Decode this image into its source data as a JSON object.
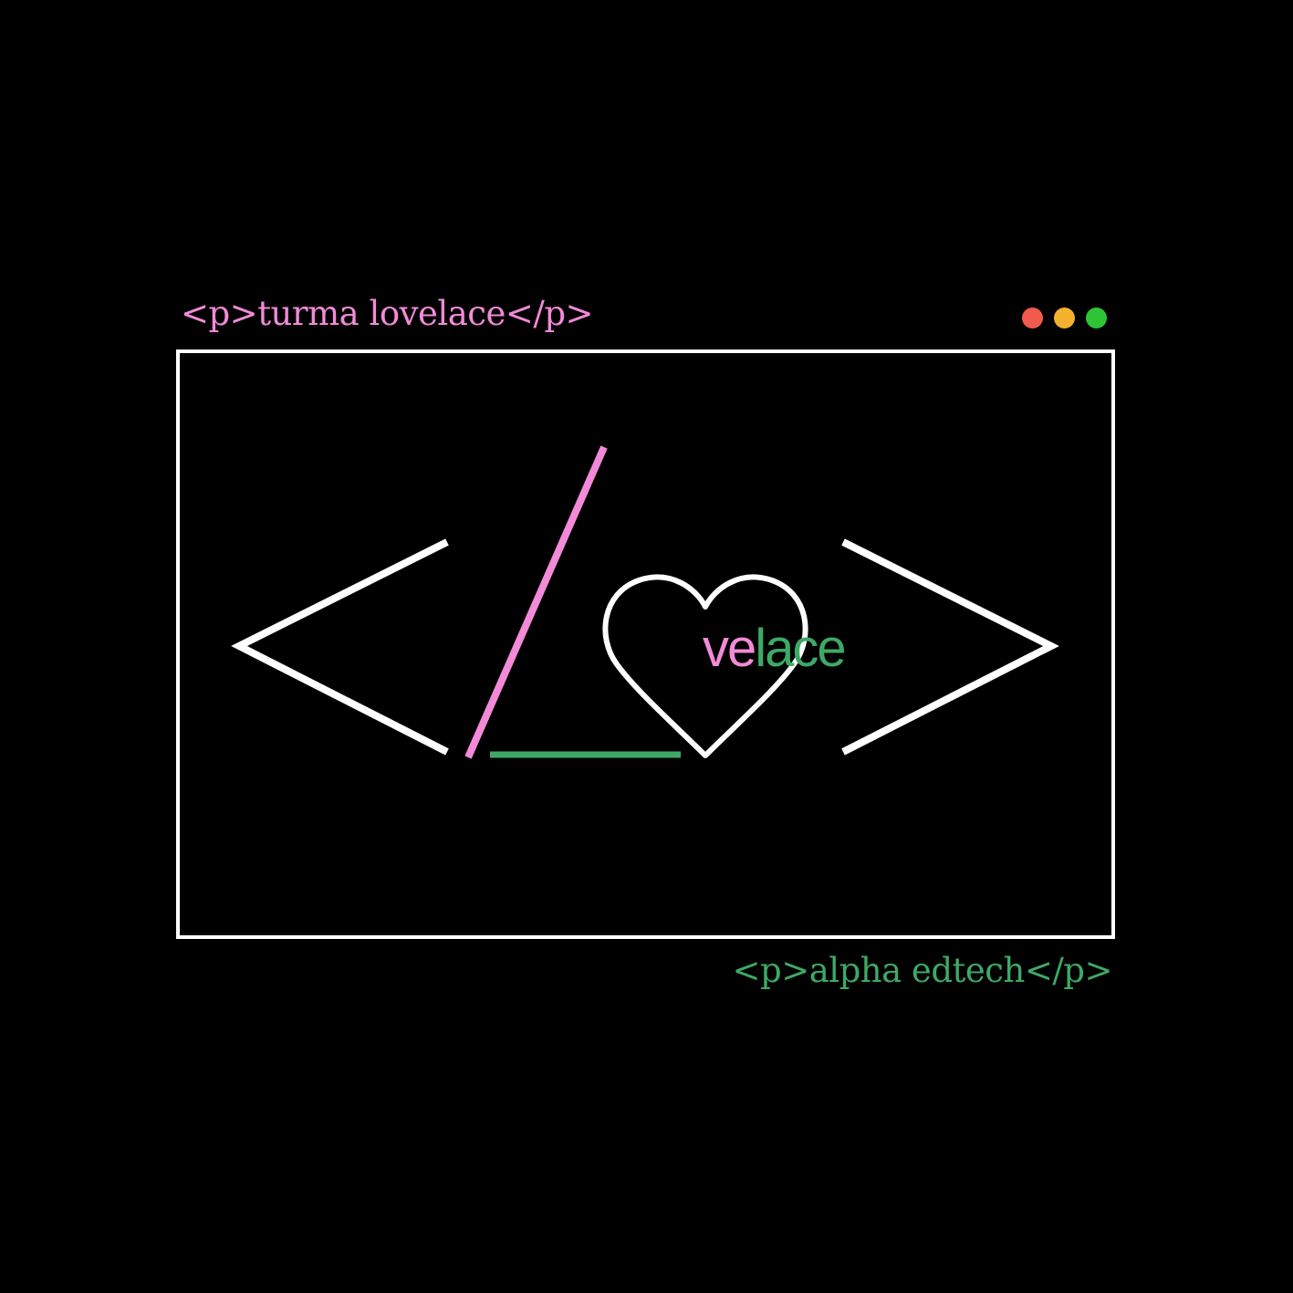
{
  "top_label": "<p>turma lovelace</p>",
  "bottom_label": "<p>alpha edtech</p>",
  "logo_text": {
    "part1": "ve",
    "part2": "lace"
  },
  "colors": {
    "pink": "#f28ad8",
    "green": "#3ea966",
    "white": "#ffffff",
    "background": "#000000",
    "dot_red": "#f25a4d",
    "dot_yellow": "#f4b12e",
    "dot_green": "#2ec436"
  },
  "icons": [
    "window-close-dot",
    "window-minimize-dot",
    "window-maximize-dot",
    "heart-icon"
  ]
}
